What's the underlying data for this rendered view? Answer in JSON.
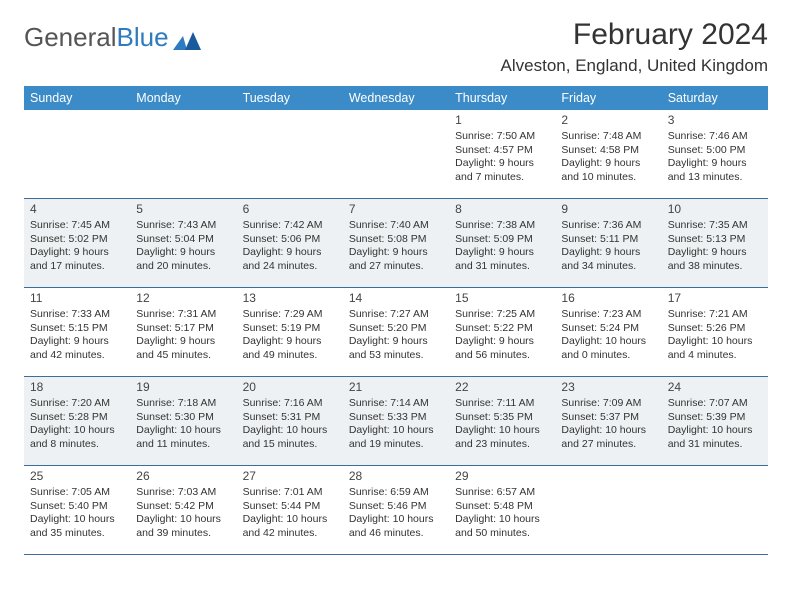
{
  "logo": {
    "text1": "General",
    "text2": "Blue"
  },
  "title": {
    "month": "February 2024",
    "location": "Alveston, England, United Kingdom"
  },
  "colors": {
    "header_bg": "#3b8bc9",
    "header_text": "#ffffff",
    "row_border": "#3b6e9a",
    "shaded_bg": "#eef1f3",
    "text": "#333333",
    "logo_gray": "#555555",
    "logo_blue": "#2f7bbf"
  },
  "days_of_week": [
    "Sunday",
    "Monday",
    "Tuesday",
    "Wednesday",
    "Thursday",
    "Friday",
    "Saturday"
  ],
  "weeks": [
    {
      "shaded": false,
      "days": [
        null,
        null,
        null,
        null,
        {
          "n": "1",
          "sr": "7:50 AM",
          "ss": "4:57 PM",
          "dl1": "Daylight: 9 hours",
          "dl2": "and 7 minutes."
        },
        {
          "n": "2",
          "sr": "7:48 AM",
          "ss": "4:58 PM",
          "dl1": "Daylight: 9 hours",
          "dl2": "and 10 minutes."
        },
        {
          "n": "3",
          "sr": "7:46 AM",
          "ss": "5:00 PM",
          "dl1": "Daylight: 9 hours",
          "dl2": "and 13 minutes."
        }
      ]
    },
    {
      "shaded": true,
      "days": [
        {
          "n": "4",
          "sr": "7:45 AM",
          "ss": "5:02 PM",
          "dl1": "Daylight: 9 hours",
          "dl2": "and 17 minutes."
        },
        {
          "n": "5",
          "sr": "7:43 AM",
          "ss": "5:04 PM",
          "dl1": "Daylight: 9 hours",
          "dl2": "and 20 minutes."
        },
        {
          "n": "6",
          "sr": "7:42 AM",
          "ss": "5:06 PM",
          "dl1": "Daylight: 9 hours",
          "dl2": "and 24 minutes."
        },
        {
          "n": "7",
          "sr": "7:40 AM",
          "ss": "5:08 PM",
          "dl1": "Daylight: 9 hours",
          "dl2": "and 27 minutes."
        },
        {
          "n": "8",
          "sr": "7:38 AM",
          "ss": "5:09 PM",
          "dl1": "Daylight: 9 hours",
          "dl2": "and 31 minutes."
        },
        {
          "n": "9",
          "sr": "7:36 AM",
          "ss": "5:11 PM",
          "dl1": "Daylight: 9 hours",
          "dl2": "and 34 minutes."
        },
        {
          "n": "10",
          "sr": "7:35 AM",
          "ss": "5:13 PM",
          "dl1": "Daylight: 9 hours",
          "dl2": "and 38 minutes."
        }
      ]
    },
    {
      "shaded": false,
      "days": [
        {
          "n": "11",
          "sr": "7:33 AM",
          "ss": "5:15 PM",
          "dl1": "Daylight: 9 hours",
          "dl2": "and 42 minutes."
        },
        {
          "n": "12",
          "sr": "7:31 AM",
          "ss": "5:17 PM",
          "dl1": "Daylight: 9 hours",
          "dl2": "and 45 minutes."
        },
        {
          "n": "13",
          "sr": "7:29 AM",
          "ss": "5:19 PM",
          "dl1": "Daylight: 9 hours",
          "dl2": "and 49 minutes."
        },
        {
          "n": "14",
          "sr": "7:27 AM",
          "ss": "5:20 PM",
          "dl1": "Daylight: 9 hours",
          "dl2": "and 53 minutes."
        },
        {
          "n": "15",
          "sr": "7:25 AM",
          "ss": "5:22 PM",
          "dl1": "Daylight: 9 hours",
          "dl2": "and 56 minutes."
        },
        {
          "n": "16",
          "sr": "7:23 AM",
          "ss": "5:24 PM",
          "dl1": "Daylight: 10 hours",
          "dl2": "and 0 minutes."
        },
        {
          "n": "17",
          "sr": "7:21 AM",
          "ss": "5:26 PM",
          "dl1": "Daylight: 10 hours",
          "dl2": "and 4 minutes."
        }
      ]
    },
    {
      "shaded": true,
      "days": [
        {
          "n": "18",
          "sr": "7:20 AM",
          "ss": "5:28 PM",
          "dl1": "Daylight: 10 hours",
          "dl2": "and 8 minutes."
        },
        {
          "n": "19",
          "sr": "7:18 AM",
          "ss": "5:30 PM",
          "dl1": "Daylight: 10 hours",
          "dl2": "and 11 minutes."
        },
        {
          "n": "20",
          "sr": "7:16 AM",
          "ss": "5:31 PM",
          "dl1": "Daylight: 10 hours",
          "dl2": "and 15 minutes."
        },
        {
          "n": "21",
          "sr": "7:14 AM",
          "ss": "5:33 PM",
          "dl1": "Daylight: 10 hours",
          "dl2": "and 19 minutes."
        },
        {
          "n": "22",
          "sr": "7:11 AM",
          "ss": "5:35 PM",
          "dl1": "Daylight: 10 hours",
          "dl2": "and 23 minutes."
        },
        {
          "n": "23",
          "sr": "7:09 AM",
          "ss": "5:37 PM",
          "dl1": "Daylight: 10 hours",
          "dl2": "and 27 minutes."
        },
        {
          "n": "24",
          "sr": "7:07 AM",
          "ss": "5:39 PM",
          "dl1": "Daylight: 10 hours",
          "dl2": "and 31 minutes."
        }
      ]
    },
    {
      "shaded": false,
      "days": [
        {
          "n": "25",
          "sr": "7:05 AM",
          "ss": "5:40 PM",
          "dl1": "Daylight: 10 hours",
          "dl2": "and 35 minutes."
        },
        {
          "n": "26",
          "sr": "7:03 AM",
          "ss": "5:42 PM",
          "dl1": "Daylight: 10 hours",
          "dl2": "and 39 minutes."
        },
        {
          "n": "27",
          "sr": "7:01 AM",
          "ss": "5:44 PM",
          "dl1": "Daylight: 10 hours",
          "dl2": "and 42 minutes."
        },
        {
          "n": "28",
          "sr": "6:59 AM",
          "ss": "5:46 PM",
          "dl1": "Daylight: 10 hours",
          "dl2": "and 46 minutes."
        },
        {
          "n": "29",
          "sr": "6:57 AM",
          "ss": "5:48 PM",
          "dl1": "Daylight: 10 hours",
          "dl2": "and 50 minutes."
        },
        null,
        null
      ]
    }
  ]
}
